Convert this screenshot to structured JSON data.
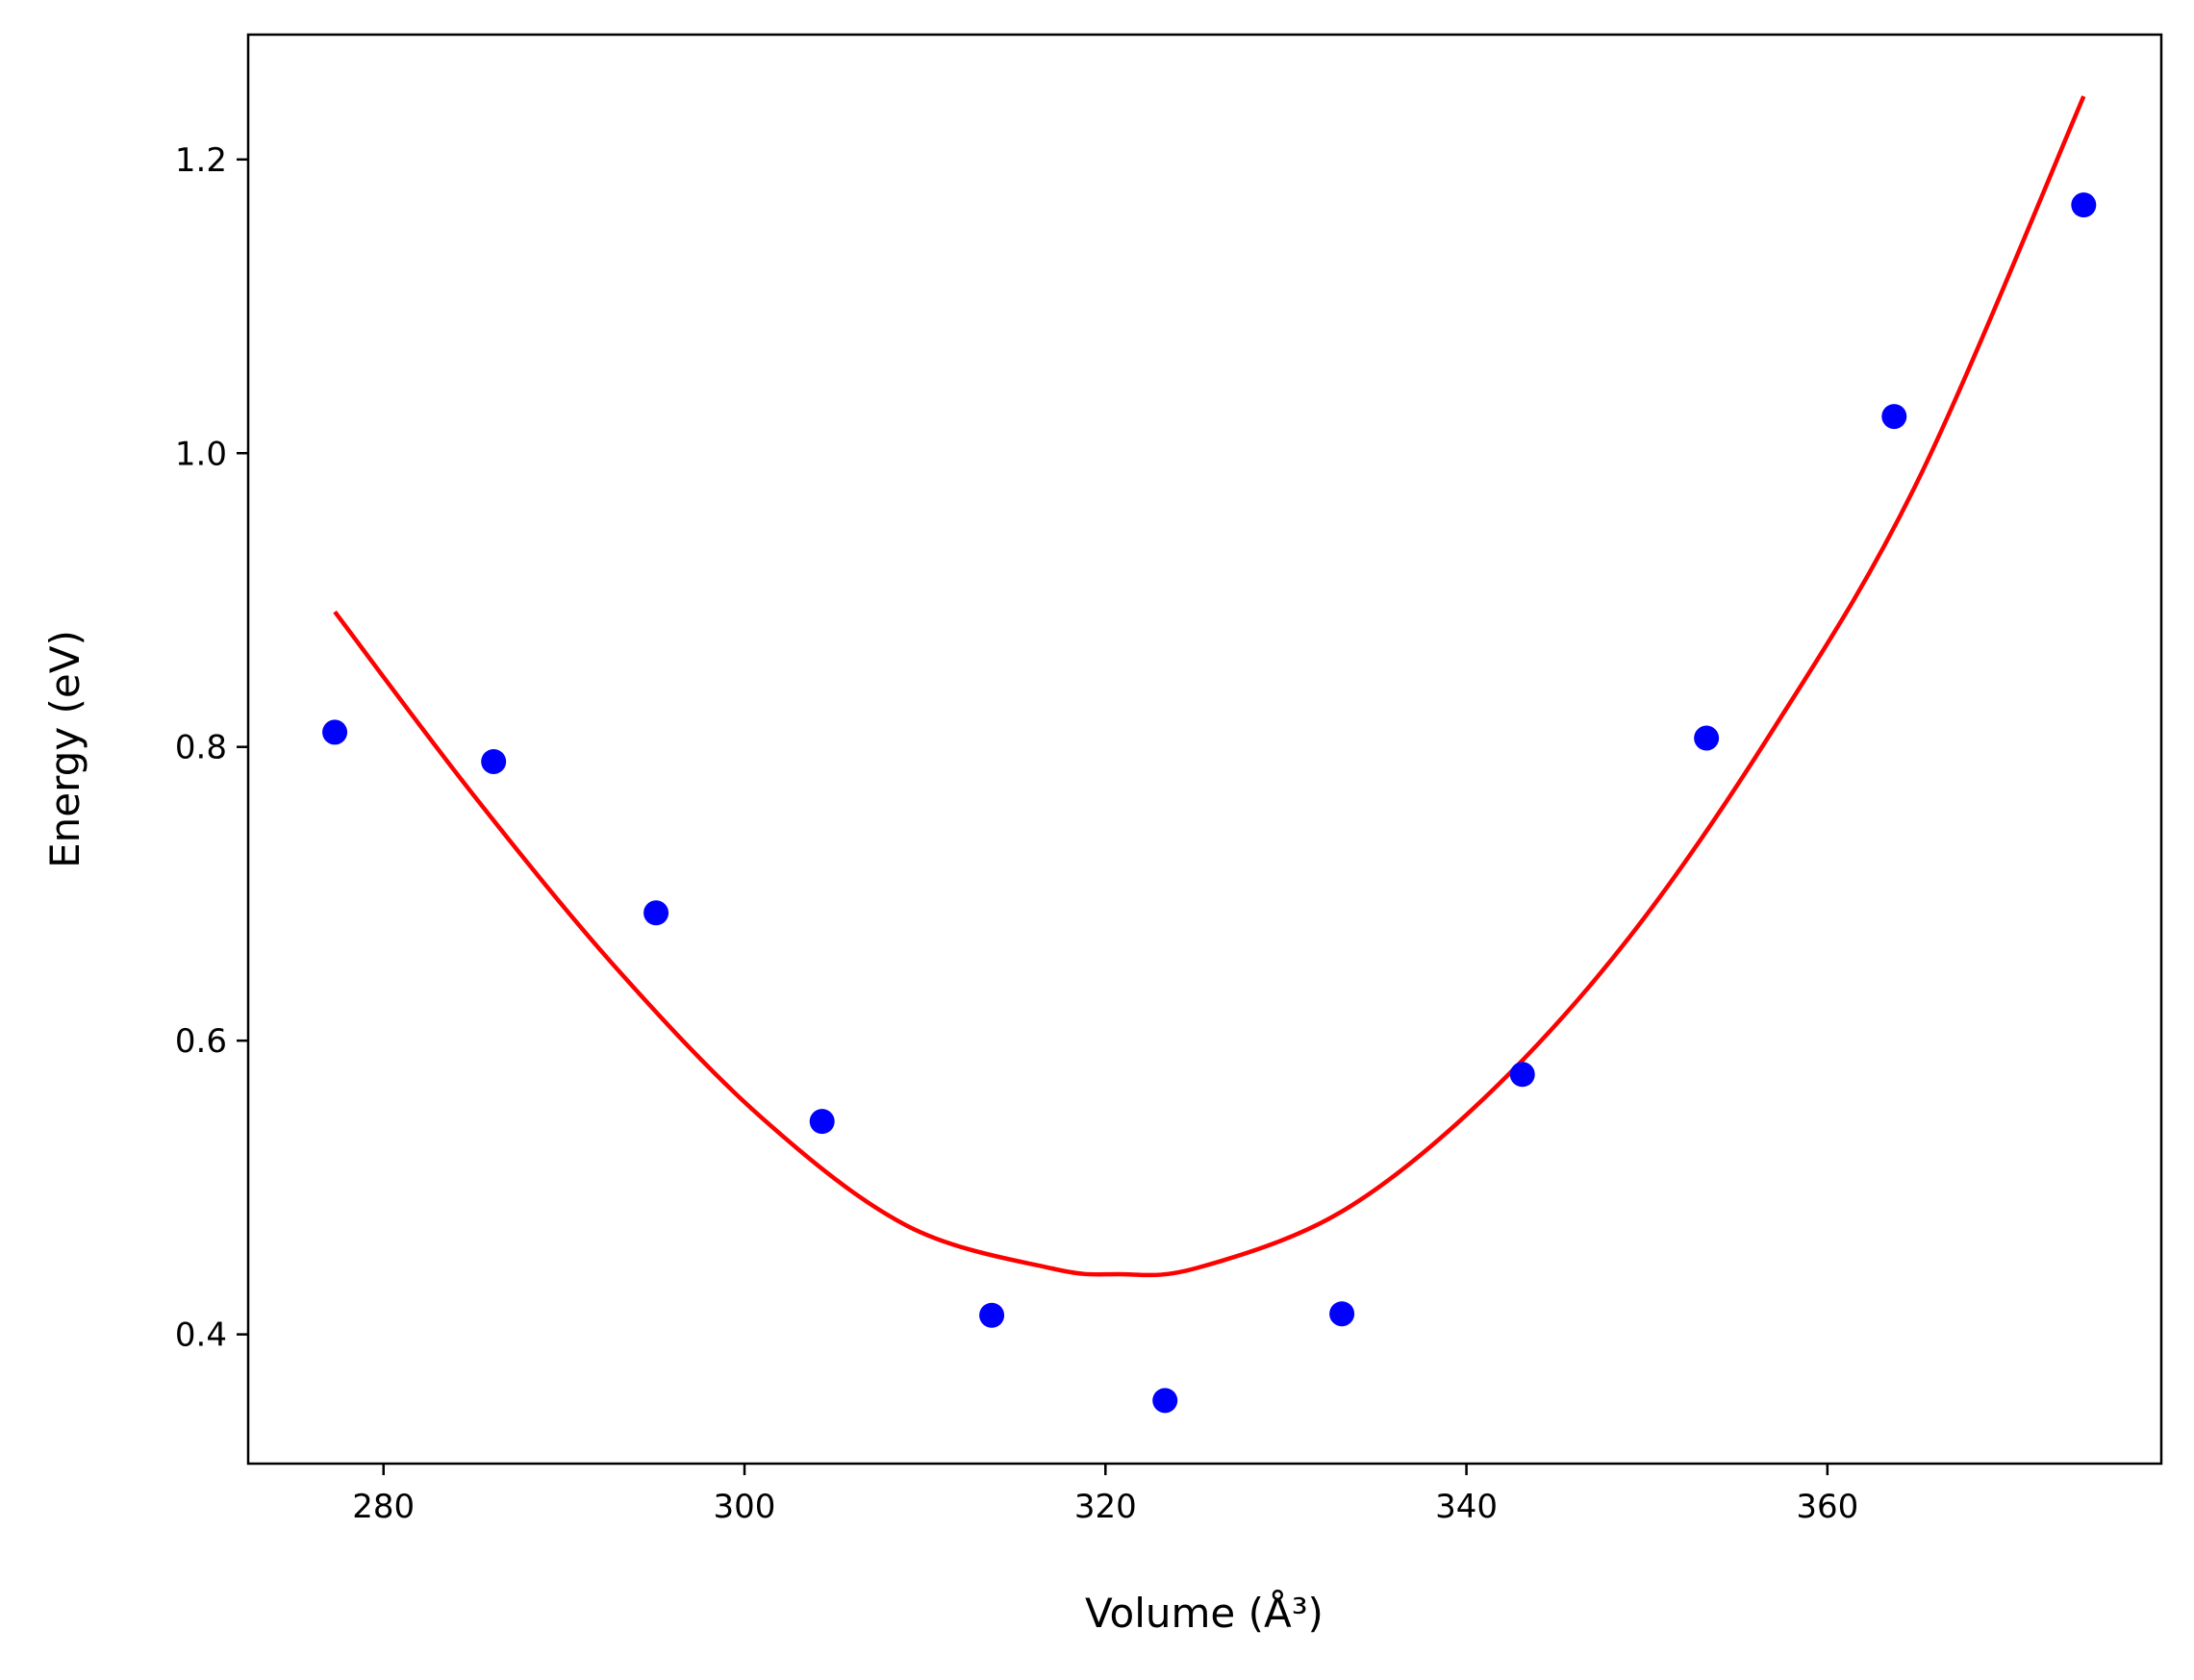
{
  "chart_data": {
    "type": "scatter",
    "xlabel": "Volume (Å³)",
    "ylabel": "Energy (eV)",
    "xlim": [
      272.5,
      378.5
    ],
    "ylim": [
      0.312,
      1.285
    ],
    "x_ticks": [
      280,
      300,
      320,
      340,
      360
    ],
    "y_ticks": [
      0.4,
      0.6,
      0.8,
      1.0,
      1.2
    ],
    "x_tick_labels": [
      "280",
      "300",
      "320",
      "340",
      "360"
    ],
    "y_tick_labels": [
      "0.4",
      "0.6",
      "0.8",
      "1.0",
      "1.2"
    ],
    "grid": false,
    "series": [
      {
        "kind": "points",
        "color": "#0000ff",
        "x": [
          277.3,
          286.1,
          295.1,
          304.3,
          313.7,
          323.3,
          333.1,
          343.1,
          353.3,
          363.7,
          374.2
        ],
        "y": [
          0.81,
          0.79,
          0.687,
          0.545,
          0.413,
          0.355,
          0.414,
          0.577,
          0.806,
          1.025,
          1.169
        ]
      },
      {
        "kind": "fit-line",
        "color": "#ff0000",
        "x": [
          277.3,
          285,
          293,
          301,
          309,
          317,
          320.7,
          325,
          333,
          341,
          349,
          357,
          365,
          374.2
        ],
        "y": [
          0.892,
          0.767,
          0.648,
          0.547,
          0.474,
          0.445,
          0.441,
          0.445,
          0.483,
          0.561,
          0.67,
          0.812,
          0.981,
          1.243
        ]
      }
    ]
  }
}
